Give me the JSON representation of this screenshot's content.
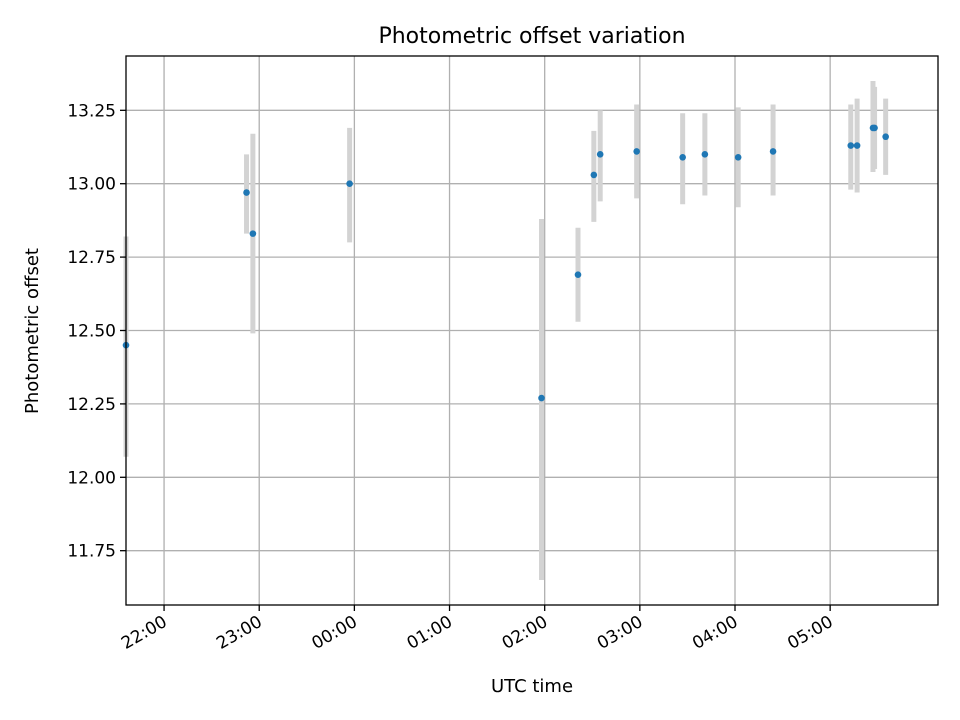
{
  "chart_data": {
    "type": "scatter",
    "title": "Photometric offset variation",
    "xlabel": "UTC time",
    "ylabel": "Photometric offset",
    "xlim": [
      "21:36",
      "06:08"
    ],
    "ylim": [
      11.565,
      13.435
    ],
    "grid": true,
    "x_ticks": [
      "22:00",
      "23:00",
      "00:00",
      "01:00",
      "02:00",
      "03:00",
      "04:00",
      "05:00"
    ],
    "y_ticks": [
      "11.75",
      "12.00",
      "12.25",
      "12.50",
      "12.75",
      "13.00",
      "13.25"
    ],
    "error_bar_color": "#d3d3d3",
    "marker_color": "#1f77b4",
    "points": [
      {
        "x": "21:36",
        "y": 12.45,
        "err_low": 12.07,
        "err_high": 12.82
      },
      {
        "x": "22:52",
        "y": 12.97,
        "err_low": 12.83,
        "err_high": 13.1
      },
      {
        "x": "22:56",
        "y": 12.83,
        "err_low": 12.49,
        "err_high": 13.17
      },
      {
        "x": "23:57",
        "y": 13.0,
        "err_low": 12.8,
        "err_high": 13.19
      },
      {
        "x": "01:58",
        "y": 12.27,
        "err_low": 11.65,
        "err_high": 12.88
      },
      {
        "x": "02:21",
        "y": 12.69,
        "err_low": 12.53,
        "err_high": 12.85
      },
      {
        "x": "02:31",
        "y": 13.03,
        "err_low": 12.87,
        "err_high": 13.18
      },
      {
        "x": "02:35",
        "y": 13.1,
        "err_low": 12.94,
        "err_high": 13.25
      },
      {
        "x": "02:58",
        "y": 13.11,
        "err_low": 12.95,
        "err_high": 13.27
      },
      {
        "x": "03:27",
        "y": 13.09,
        "err_low": 12.93,
        "err_high": 13.24
      },
      {
        "x": "03:41",
        "y": 13.1,
        "err_low": 12.96,
        "err_high": 13.24
      },
      {
        "x": "04:02",
        "y": 13.09,
        "err_low": 12.92,
        "err_high": 13.26
      },
      {
        "x": "04:24",
        "y": 13.11,
        "err_low": 12.96,
        "err_high": 13.27
      },
      {
        "x": "05:13",
        "y": 13.13,
        "err_low": 12.98,
        "err_high": 13.27
      },
      {
        "x": "05:17",
        "y": 13.13,
        "err_low": 12.97,
        "err_high": 13.29
      },
      {
        "x": "05:27",
        "y": 13.19,
        "err_low": 13.04,
        "err_high": 13.35
      },
      {
        "x": "05:28",
        "y": 13.19,
        "err_low": 13.05,
        "err_high": 13.33
      },
      {
        "x": "05:35",
        "y": 13.16,
        "err_low": 13.03,
        "err_high": 13.29
      }
    ]
  }
}
